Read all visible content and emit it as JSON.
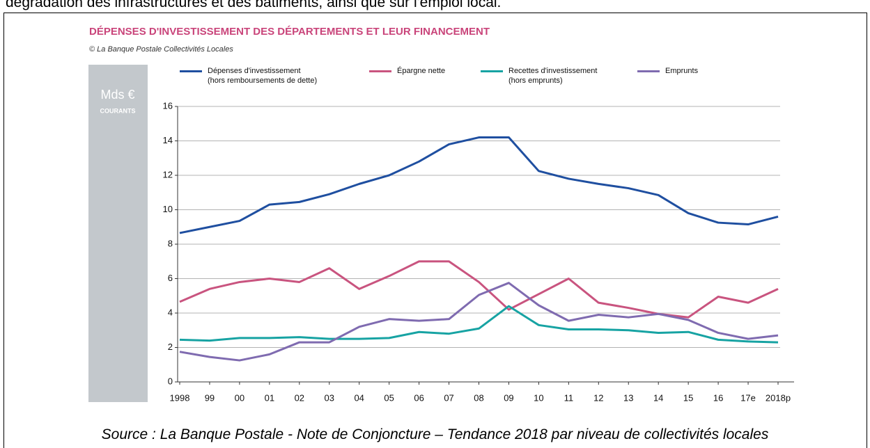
{
  "page_text": "dégradation des infrastructures et des bâtiments, ainsi que sur l'emploi local.",
  "caption": "Source : La Banque Postale - Note de Conjoncture – Tendance 2018 par niveau de collectivités locales",
  "chart_data": {
    "type": "line",
    "title": "DÉPENSES D'INVESTISSEMENT DES DÉPARTEMENTS ET LEUR FINANCEMENT",
    "subtitle": "© La Banque Postale Collectivités Locales",
    "unit": "Mds €",
    "unit_note": "COURANTS",
    "categories": [
      "1998",
      "99",
      "00",
      "01",
      "02",
      "03",
      "04",
      "05",
      "06",
      "07",
      "08",
      "09",
      "10",
      "11",
      "12",
      "13",
      "14",
      "15",
      "16",
      "17e",
      "2018p"
    ],
    "series": [
      {
        "name": "Dépenses d'investissement\n(hors remboursements de dette)",
        "color": "#1f4fa0",
        "values": [
          8.65,
          9.0,
          9.35,
          10.3,
          10.45,
          10.9,
          11.5,
          12.0,
          12.8,
          13.8,
          14.2,
          14.2,
          12.25,
          11.8,
          11.5,
          11.25,
          10.85,
          9.8,
          9.25,
          9.15,
          9.6
        ]
      },
      {
        "name": "Épargne nette",
        "color": "#c9547f",
        "values": [
          4.65,
          5.4,
          5.8,
          6.0,
          5.8,
          6.6,
          5.4,
          6.15,
          7.0,
          7.0,
          5.8,
          4.2,
          5.1,
          6.0,
          4.6,
          4.3,
          3.95,
          3.75,
          4.95,
          4.6,
          5.4
        ]
      },
      {
        "name": "Recettes d'investissement\n(hors emprunts)",
        "color": "#17a3a3",
        "values": [
          2.45,
          2.4,
          2.55,
          2.55,
          2.6,
          2.5,
          2.5,
          2.55,
          2.9,
          2.8,
          3.1,
          4.4,
          3.3,
          3.05,
          3.05,
          3.0,
          2.85,
          2.9,
          2.45,
          2.35,
          2.3
        ]
      },
      {
        "name": "Emprunts",
        "color": "#7f6bb0",
        "values": [
          1.75,
          1.45,
          1.25,
          1.6,
          2.3,
          2.3,
          3.2,
          3.65,
          3.55,
          3.65,
          5.05,
          5.75,
          4.45,
          3.55,
          3.9,
          3.75,
          3.95,
          3.6,
          2.85,
          2.5,
          2.7
        ]
      }
    ],
    "ylim": [
      0,
      16
    ],
    "yticks": [
      0,
      2,
      4,
      6,
      8,
      10,
      12,
      14,
      16
    ],
    "grid": true
  }
}
